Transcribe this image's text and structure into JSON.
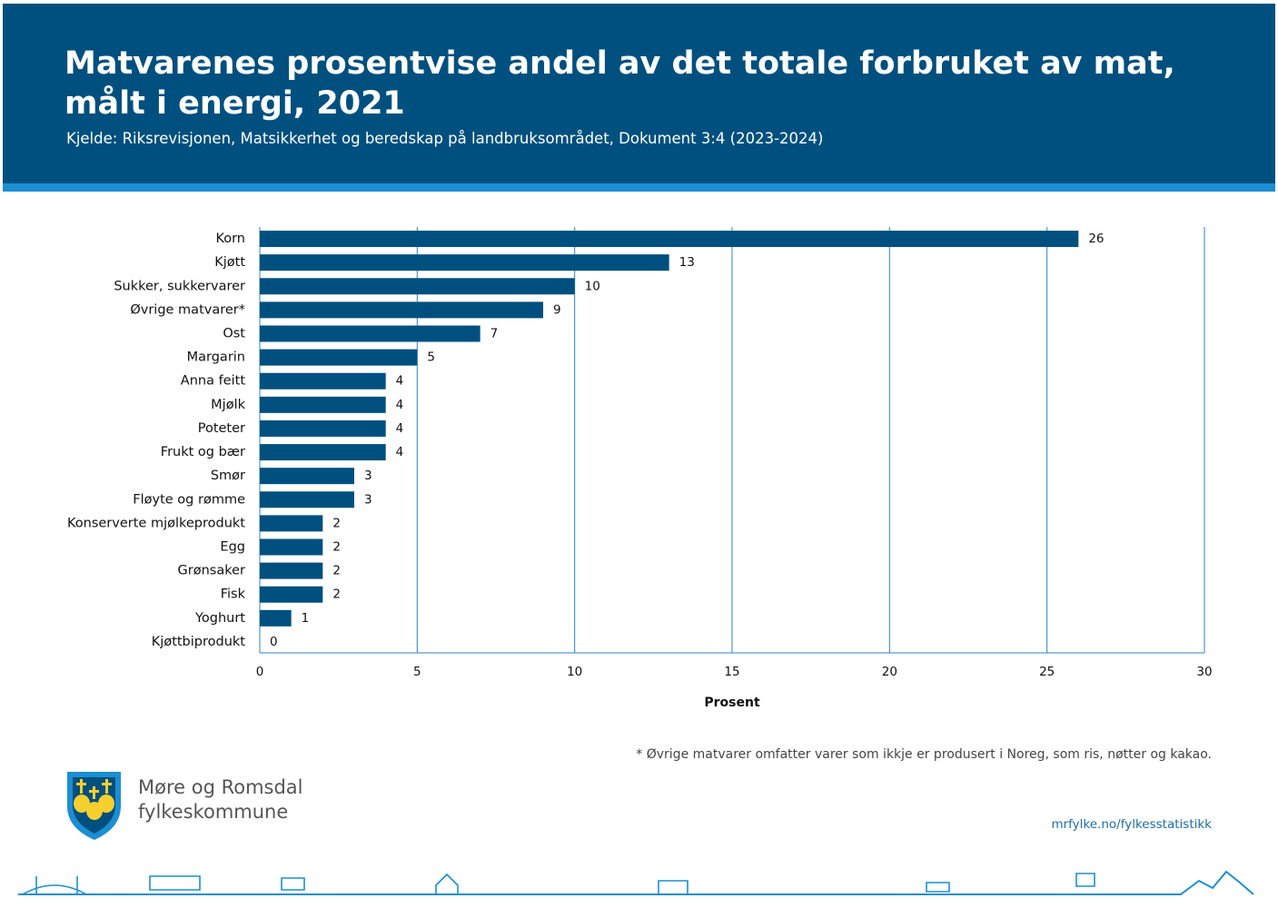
{
  "chart_data": {
    "type": "bar",
    "orientation": "horizontal",
    "title": "Matvarenes prosentvise andel av det totale forbruket av mat, målt i energi, 2021",
    "subtitle": "Kjelde: Riksrevisjonen, Matsikkerhet og beredskap på landbruksområdet, Dokument 3:4 (2023-2024)",
    "categories": [
      "Korn",
      "Kjøtt",
      "Sukker, sukkervarer",
      "Øvrige matvarer*",
      "Ost",
      "Margarin",
      "Anna feitt",
      "Mjølk",
      "Poteter",
      "Frukt og bær",
      "Smør",
      "Fløyte og rømme",
      "Konserverte mjølkeprodukt",
      "Egg",
      "Grønsaker",
      "Fisk",
      "Yoghurt",
      "Kjøttbiprodukt"
    ],
    "values": [
      26,
      13,
      10,
      9,
      7,
      5,
      4,
      4,
      4,
      4,
      3,
      3,
      2,
      2,
      2,
      2,
      1,
      0
    ],
    "color": "#00507f",
    "grid_color": "#2a86c5",
    "xlim": [
      0,
      30
    ],
    "xticks": [
      0,
      5,
      10,
      15,
      20,
      25,
      30
    ],
    "grid": true,
    "x_label": "Prosent",
    "footnote": "* Øvrige matvarer omfatter varer som ikkje er produsert i Noreg, som ris, nøtter og kakao."
  },
  "logo": {
    "line1": "Møre og Romsdal",
    "line2": "fylkeskommune"
  },
  "url": "mrfylke.no/fylkesstatistikk"
}
